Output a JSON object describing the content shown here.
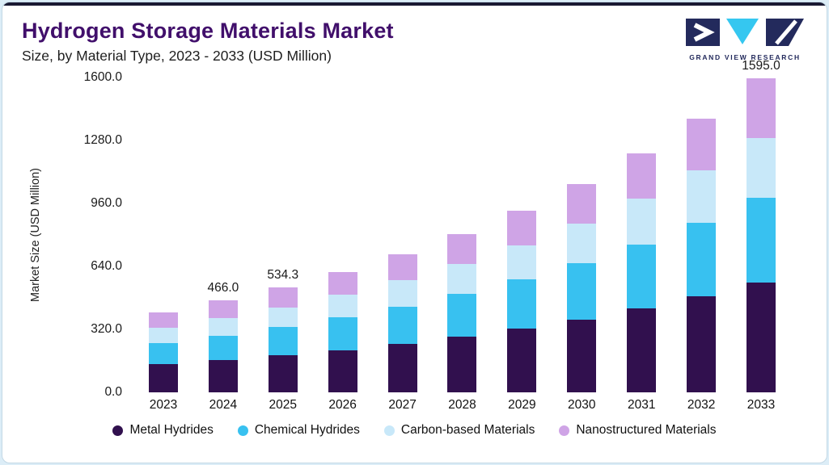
{
  "page": {
    "title": "Hydrogen Storage Materials Market",
    "subtitle": "Size, by Material Type, 2023 - 2033 (USD Million)"
  },
  "logo": {
    "text": "GRAND VIEW RESEARCH",
    "navy": "#232a5c",
    "cyan": "#35c7f0"
  },
  "colors": {
    "top_accent": "#191932",
    "title": "#410f6b",
    "page_background": "#dcedf7",
    "card_background": "#ffffff"
  },
  "chart_data": {
    "type": "bar",
    "stacked": true,
    "title": "Hydrogen Storage Materials Market Size, by Material Type, 2023 - 2033 (USD Million)",
    "xlabel": "",
    "ylabel": "Market Size (USD Million)",
    "ylim": [
      0,
      1600
    ],
    "yticks": [
      "0.0",
      "320.0",
      "640.0",
      "960.0",
      "1280.0",
      "1600.0"
    ],
    "grid": false,
    "legend_position": "bottom",
    "categories": [
      "2023",
      "2024",
      "2025",
      "2026",
      "2027",
      "2028",
      "2029",
      "2030",
      "2031",
      "2032",
      "2033"
    ],
    "bar_labels": [
      "",
      "466.0",
      "534.3",
      "",
      "",
      "",
      "",
      "",
      "",
      "",
      "1595.0"
    ],
    "series": [
      {
        "name": "Metal Hydrides",
        "color": "#31104e",
        "values": [
          142.1,
          163.1,
          187.0,
          214.4,
          245.8,
          281.8,
          323.1,
          370.5,
          424.8,
          487.0,
          558.3
        ]
      },
      {
        "name": "Chemical Hydrides",
        "color": "#38c1f0",
        "values": [
          109.6,
          125.8,
          144.3,
          165.4,
          189.6,
          217.4,
          249.3,
          285.8,
          327.7,
          375.7,
          430.7
        ]
      },
      {
        "name": "Carbon-based Materials",
        "color": "#c8e8f9",
        "values": [
          77.2,
          88.5,
          101.5,
          116.4,
          133.4,
          153.0,
          175.4,
          201.1,
          230.6,
          264.4,
          303.0
        ]
      },
      {
        "name": "Nanostructured Materials",
        "color": "#cfa4e6",
        "values": [
          77.2,
          88.5,
          101.5,
          116.4,
          133.4,
          153.0,
          175.4,
          201.1,
          230.6,
          264.4,
          303.0
        ]
      }
    ],
    "totals": [
      406.1,
      466.0,
      534.3,
      612.6,
      702.2,
      805.2,
      923.2,
      1058.5,
      1213.7,
      1391.4,
      1595.0
    ]
  }
}
